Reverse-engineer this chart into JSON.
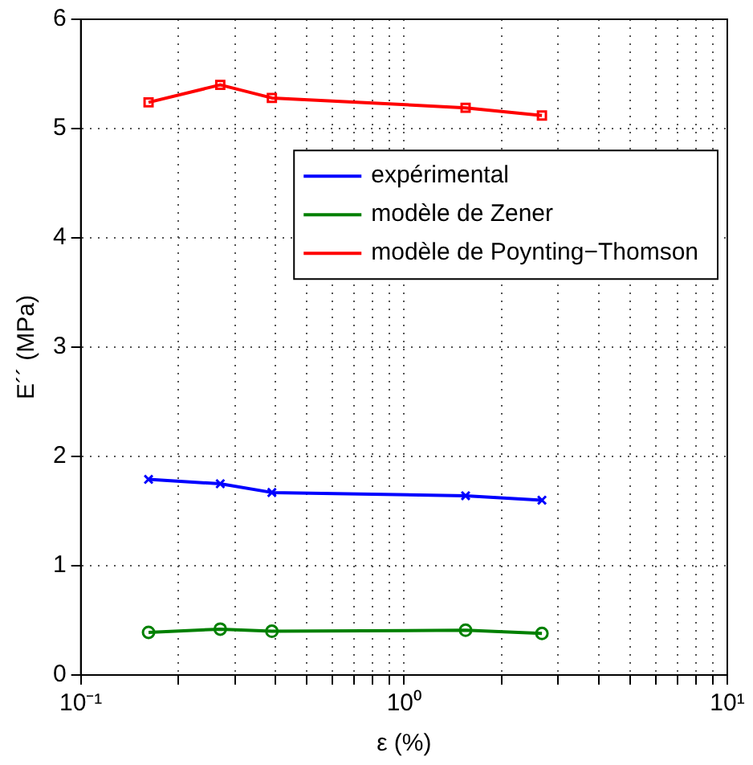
{
  "chart_data": {
    "type": "line",
    "xlabel": "ε (%)",
    "ylabel": "E´´ (MPa)",
    "log": "x",
    "x": [
      0.162,
      0.27,
      0.39,
      1.55,
      2.67
    ],
    "series": [
      {
        "name": "expérimental",
        "color": "#0000ff",
        "marker": "cross",
        "values": [
          1.79,
          1.75,
          1.67,
          1.64,
          1.6
        ]
      },
      {
        "name": "modèle de Zener",
        "color": "#008000",
        "marker": "circle",
        "values": [
          0.39,
          0.42,
          0.4,
          0.41,
          0.38
        ]
      },
      {
        "name": "modèle de Poynting−Thomson",
        "color": "#ff0000",
        "marker": "square",
        "values": [
          5.24,
          5.4,
          5.28,
          5.19,
          5.12
        ]
      }
    ],
    "xlim": [
      0.1,
      10
    ],
    "ylim": [
      0,
      6
    ],
    "xticks": [
      {
        "value": 0.1,
        "label": "10⁻¹"
      },
      {
        "value": 0.2,
        "label": null
      },
      {
        "value": 0.3,
        "label": null
      },
      {
        "value": 0.4,
        "label": null
      },
      {
        "value": 0.5,
        "label": null
      },
      {
        "value": 0.6,
        "label": null
      },
      {
        "value": 0.7,
        "label": null
      },
      {
        "value": 0.8,
        "label": null
      },
      {
        "value": 0.9,
        "label": null
      },
      {
        "value": 1,
        "label": "10⁰"
      },
      {
        "value": 2,
        "label": null
      },
      {
        "value": 3,
        "label": null
      },
      {
        "value": 4,
        "label": null
      },
      {
        "value": 5,
        "label": null
      },
      {
        "value": 6,
        "label": null
      },
      {
        "value": 7,
        "label": null
      },
      {
        "value": 8,
        "label": null
      },
      {
        "value": 9,
        "label": null
      },
      {
        "value": 10,
        "label": "10¹"
      }
    ],
    "yticks": [
      0,
      1,
      2,
      3,
      4,
      5,
      6
    ],
    "grid": true,
    "legend": "right",
    "line_style": "solid"
  }
}
